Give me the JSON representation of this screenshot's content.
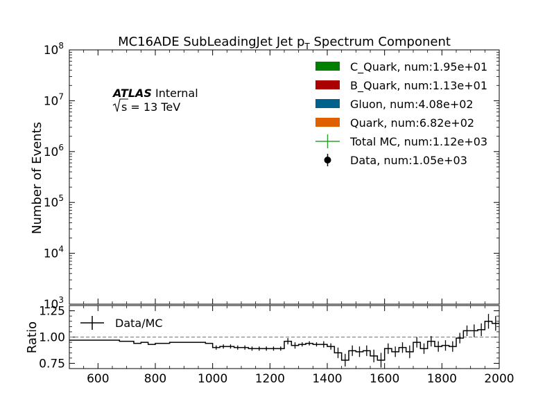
{
  "chart_data": [
    {
      "type": "histogram",
      "title_main": "MC16ADE SubLeadingJet Jet p",
      "title_sub": "T",
      "title_rest": " Spectrum Component",
      "ylabel": "Number of Events",
      "yscale": "log",
      "ylim": [
        1000,
        100000000
      ],
      "xlim": [
        500,
        2000
      ],
      "y_ticks": [
        {
          "base": "10",
          "exp": "3",
          "value": 1000
        },
        {
          "base": "10",
          "exp": "4",
          "value": 10000
        },
        {
          "base": "10",
          "exp": "5",
          "value": 100000
        },
        {
          "base": "10",
          "exp": "6",
          "value": 1000000
        },
        {
          "base": "10",
          "exp": "7",
          "value": 10000000
        },
        {
          "base": "10",
          "exp": "8",
          "value": 100000000
        }
      ],
      "atlas_label": "ATLAS",
      "atlas_status": "Internal",
      "energy_label": "s = 13 TeV",
      "legend_position": "top-right",
      "legend": [
        {
          "kind": "patch",
          "color": "#008000",
          "label": "C_Quark, num:1.95e+01"
        },
        {
          "kind": "patch",
          "color": "#aa0000",
          "label": "B_Quark, num:1.13e+01"
        },
        {
          "kind": "patch",
          "color": "#00618a",
          "label": "Gluon, num:4.08e+02"
        },
        {
          "kind": "patch",
          "color": "#e06000",
          "label": "Quark, num:6.82e+02"
        },
        {
          "kind": "errorbar",
          "color": "#2ca02c",
          "label": "Total MC, num:1.12e+03"
        },
        {
          "kind": "point",
          "color": "#000000",
          "label": "Data, num:1.05e+03"
        }
      ]
    },
    {
      "type": "step",
      "ylabel": "Ratio",
      "xlabel": "",
      "xlim": [
        500,
        2000
      ],
      "ylim": [
        0.7,
        1.3
      ],
      "x_ticks": [
        600,
        800,
        1000,
        1200,
        1400,
        1600,
        1800,
        2000
      ],
      "y_ticks": [
        "0.75",
        "1.00",
        "1.25"
      ],
      "reference_line": 1.0,
      "legend": "Data/MC",
      "bin_edges": [
        500,
        525,
        550,
        575,
        600,
        625,
        650,
        675,
        700,
        725,
        750,
        775,
        800,
        825,
        850,
        875,
        900,
        925,
        950,
        975,
        1000,
        1025,
        1050,
        1075,
        1100,
        1125,
        1150,
        1175,
        1200,
        1225,
        1250,
        1275,
        1300,
        1325,
        1350,
        1375,
        1400,
        1425,
        1450,
        1475,
        1500,
        1525,
        1550,
        1575,
        1600,
        1625,
        1650,
        1675,
        1700,
        1725,
        1750,
        1775,
        1800,
        1825,
        1850,
        1875,
        1900,
        1925,
        1950,
        1975,
        2000
      ],
      "ratios": [
        0.97,
        0.97,
        0.97,
        0.97,
        0.97,
        0.97,
        0.97,
        0.96,
        0.96,
        0.94,
        0.95,
        0.93,
        0.94,
        0.94,
        0.95,
        0.95,
        0.95,
        0.95,
        0.95,
        0.94,
        0.9,
        0.91,
        0.91,
        0.9,
        0.9,
        0.89,
        0.89,
        0.89,
        0.89,
        0.89,
        0.96,
        0.92,
        0.93,
        0.94,
        0.93,
        0.93,
        0.91,
        0.85,
        0.78,
        0.87,
        0.86,
        0.87,
        0.82,
        0.78,
        0.89,
        0.86,
        0.9,
        0.86,
        0.95,
        0.89,
        0.96,
        0.91,
        0.92,
        0.91,
        0.99,
        1.06,
        1.06,
        1.07,
        1.15,
        1.13,
        1.02
      ],
      "errors": [
        0,
        0,
        0,
        0,
        0,
        0,
        0,
        0,
        0,
        0,
        0,
        0,
        0,
        0,
        0,
        0,
        0,
        0,
        0,
        0,
        0.02,
        0.02,
        0.02,
        0.02,
        0.02,
        0.02,
        0.02,
        0.02,
        0.02,
        0.02,
        0.03,
        0.03,
        0.02,
        0.02,
        0.02,
        0.03,
        0.03,
        0.05,
        0.06,
        0.05,
        0.05,
        0.05,
        0.06,
        0.07,
        0.05,
        0.05,
        0.05,
        0.06,
        0.05,
        0.05,
        0.05,
        0.05,
        0.05,
        0.05,
        0.05,
        0.05,
        0.06,
        0.06,
        0.07,
        0.07,
        0.08
      ]
    }
  ]
}
